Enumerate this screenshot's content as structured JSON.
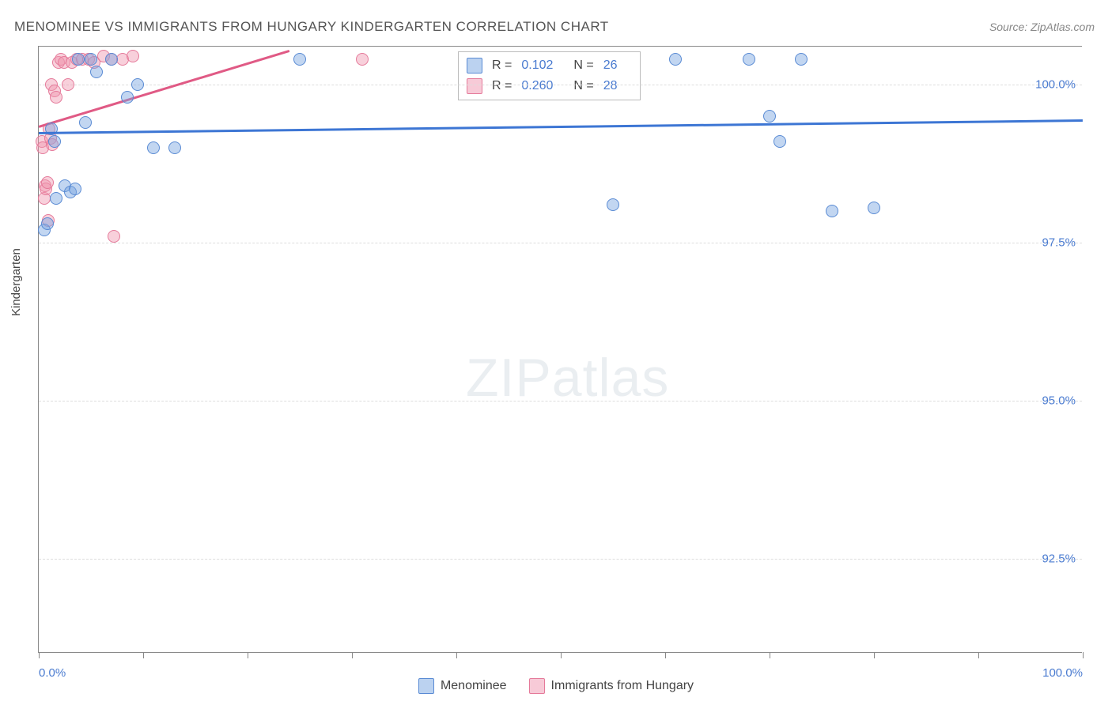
{
  "title": "MENOMINEE VS IMMIGRANTS FROM HUNGARY KINDERGARTEN CORRELATION CHART",
  "source": "Source: ZipAtlas.com",
  "ylabel": "Kindergarten",
  "watermark_bold": "ZIP",
  "watermark_light": "atlas",
  "chart": {
    "type": "scatter",
    "xlim": [
      0,
      100
    ],
    "ylim": [
      91.0,
      100.6
    ],
    "background_color": "#ffffff",
    "grid_color": "#dddddd",
    "axis_color": "#888888",
    "label_color": "#4a7bd0",
    "title_fontsize": 17,
    "label_fontsize": 15,
    "marker_size": 16,
    "yticks": [
      {
        "v": 100.0,
        "label": "100.0%"
      },
      {
        "v": 97.5,
        "label": "97.5%"
      },
      {
        "v": 95.0,
        "label": "95.0%"
      },
      {
        "v": 92.5,
        "label": "92.5%"
      }
    ],
    "xticks_major": [
      0,
      100
    ],
    "xtick_labels": [
      {
        "v": 0,
        "label": "0.0%"
      },
      {
        "v": 100,
        "label": "100.0%"
      }
    ],
    "xticks_minor": [
      10,
      20,
      30,
      40,
      50,
      60,
      70,
      80,
      90
    ]
  },
  "series": {
    "menominee": {
      "label": "Menominee",
      "color_fill": "rgba(120,165,225,0.45)",
      "color_stroke": "#5a8bd4",
      "trend_color": "#3d76d4",
      "R": "0.102",
      "N": "26",
      "trend": {
        "x1": 0,
        "y1": 99.25,
        "x2": 100,
        "y2": 99.45
      },
      "points": [
        {
          "x": 0.5,
          "y": 97.7
        },
        {
          "x": 0.8,
          "y": 97.8
        },
        {
          "x": 1.2,
          "y": 99.3
        },
        {
          "x": 1.5,
          "y": 99.1
        },
        {
          "x": 1.7,
          "y": 98.2
        },
        {
          "x": 2.5,
          "y": 98.4
        },
        {
          "x": 3.0,
          "y": 98.3
        },
        {
          "x": 3.8,
          "y": 100.4
        },
        {
          "x": 4.5,
          "y": 99.4
        },
        {
          "x": 5.0,
          "y": 100.4
        },
        {
          "x": 5.5,
          "y": 100.2
        },
        {
          "x": 7.0,
          "y": 100.4
        },
        {
          "x": 8.5,
          "y": 99.8
        },
        {
          "x": 9.5,
          "y": 100.0
        },
        {
          "x": 11.0,
          "y": 99.0
        },
        {
          "x": 13.0,
          "y": 99.0
        },
        {
          "x": 25.0,
          "y": 100.4
        },
        {
          "x": 55.0,
          "y": 98.1
        },
        {
          "x": 61.0,
          "y": 100.4
        },
        {
          "x": 68.0,
          "y": 100.4
        },
        {
          "x": 70.0,
          "y": 99.5
        },
        {
          "x": 71.0,
          "y": 99.1
        },
        {
          "x": 73.0,
          "y": 100.4
        },
        {
          "x": 76.0,
          "y": 98.0
        },
        {
          "x": 80.0,
          "y": 98.05
        },
        {
          "x": 3.5,
          "y": 98.35
        }
      ]
    },
    "hungary": {
      "label": "Immigrants from Hungary",
      "color_fill": "rgba(240,150,175,0.45)",
      "color_stroke": "#e57a9a",
      "trend_color": "#e05a85",
      "R": "0.260",
      "N": "28",
      "trend": {
        "x1": 0,
        "y1": 99.35,
        "x2": 24,
        "y2": 100.55
      },
      "points": [
        {
          "x": 0.3,
          "y": 99.1
        },
        {
          "x": 0.4,
          "y": 99.0
        },
        {
          "x": 0.5,
          "y": 98.2
        },
        {
          "x": 0.6,
          "y": 98.4
        },
        {
          "x": 0.7,
          "y": 98.35
        },
        {
          "x": 0.8,
          "y": 98.45
        },
        {
          "x": 0.9,
          "y": 97.85
        },
        {
          "x": 1.0,
          "y": 99.3
        },
        {
          "x": 1.1,
          "y": 99.15
        },
        {
          "x": 1.2,
          "y": 100.0
        },
        {
          "x": 1.3,
          "y": 99.05
        },
        {
          "x": 1.5,
          "y": 99.9
        },
        {
          "x": 1.7,
          "y": 99.8
        },
        {
          "x": 1.9,
          "y": 100.35
        },
        {
          "x": 2.1,
          "y": 100.4
        },
        {
          "x": 2.4,
          "y": 100.35
        },
        {
          "x": 2.8,
          "y": 100.0
        },
        {
          "x": 3.2,
          "y": 100.35
        },
        {
          "x": 3.6,
          "y": 100.4
        },
        {
          "x": 4.2,
          "y": 100.4
        },
        {
          "x": 4.8,
          "y": 100.4
        },
        {
          "x": 5.3,
          "y": 100.35
        },
        {
          "x": 6.2,
          "y": 100.45
        },
        {
          "x": 7.0,
          "y": 100.4
        },
        {
          "x": 7.2,
          "y": 97.6
        },
        {
          "x": 8.0,
          "y": 100.4
        },
        {
          "x": 9.0,
          "y": 100.45
        },
        {
          "x": 31.0,
          "y": 100.4
        }
      ]
    }
  },
  "legend": {
    "r_label": "R =",
    "n_label": "N ="
  }
}
